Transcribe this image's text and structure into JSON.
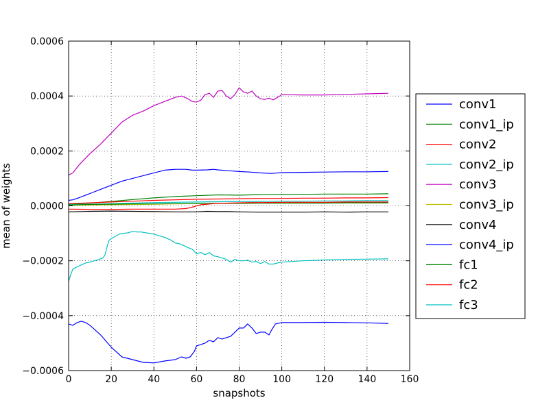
{
  "chart_data": {
    "type": "line",
    "title": "",
    "xlabel": "snapshots",
    "ylabel": "mean of weights",
    "xlim": [
      0,
      160
    ],
    "ylim": [
      -0.0006,
      0.0006
    ],
    "xticks": [
      0,
      20,
      40,
      60,
      80,
      100,
      120,
      140,
      160
    ],
    "xtick_labels": [
      "0",
      "20",
      "40",
      "60",
      "80",
      "100",
      "120",
      "140",
      "160"
    ],
    "yticks": [
      -0.0006,
      -0.0004,
      -0.0002,
      0.0,
      0.0002,
      0.0004,
      0.0006
    ],
    "ytick_labels": [
      "−0.0006",
      "−0.0004",
      "−0.0002",
      "0.0000",
      "0.0002",
      "0.0004",
      "0.0006"
    ],
    "grid": true,
    "legend_position": "outside-right",
    "series": [
      {
        "name": "conv1",
        "color": "#0000ff",
        "x": [
          0,
          2,
          5,
          10,
          15,
          20,
          25,
          30,
          35,
          40,
          45,
          50,
          55,
          58,
          60,
          65,
          68,
          70,
          75,
          80,
          85,
          90,
          95,
          100,
          110,
          120,
          130,
          140,
          150
        ],
        "y": [
          2e-05,
          2.2e-05,
          3e-05,
          4.5e-05,
          6e-05,
          7.5e-05,
          9e-05,
          0.0001,
          0.00011,
          0.00012,
          0.00013,
          0.000133,
          0.000133,
          0.00013,
          0.00013,
          0.000131,
          0.000133,
          0.000131,
          0.000128,
          0.000125,
          0.000123,
          0.00012,
          0.000118,
          0.000121,
          0.000122,
          0.000123,
          0.000124,
          0.000124,
          0.000125
        ]
      },
      {
        "name": "conv1_ip",
        "color": "#008000",
        "x": [
          0,
          10,
          20,
          30,
          40,
          50,
          60,
          70,
          80,
          90,
          100,
          110,
          120,
          130,
          140,
          150
        ],
        "y": [
          5e-06,
          1e-05,
          1.6e-05,
          2.3e-05,
          2.9e-05,
          3.4e-05,
          3.7e-05,
          4e-05,
          3.9e-05,
          4.1e-05,
          4.2e-05,
          4.2e-05,
          4.3e-05,
          4.3e-05,
          4.3e-05,
          4.4e-05
        ]
      },
      {
        "name": "conv2",
        "color": "#ff0000",
        "x": [
          0,
          10,
          20,
          30,
          40,
          50,
          60,
          70,
          80,
          90,
          100,
          110,
          120,
          130,
          140,
          150
        ],
        "y": [
          8e-06,
          1.1e-05,
          1.4e-05,
          1.7e-05,
          2e-05,
          2.2e-05,
          2.4e-05,
          2.5e-05,
          2.6e-05,
          2.7e-05,
          2.7e-05,
          2.8e-05,
          2.8e-05,
          2.9e-05,
          2.9e-05,
          3e-05
        ]
      },
      {
        "name": "conv2_ip",
        "color": "#00bfbf",
        "x": [
          0,
          10,
          20,
          30,
          40,
          50,
          60,
          70,
          80,
          90,
          100,
          110,
          120,
          130,
          140,
          150
        ],
        "y": [
          4e-06,
          6e-06,
          8e-06,
          1e-05,
          1.2e-05,
          1.3e-05,
          1.4e-05,
          1.5e-05,
          1.6e-05,
          1.6e-05,
          1.7e-05,
          1.7e-05,
          1.8e-05,
          1.8e-05,
          1.9e-05,
          1.9e-05
        ]
      },
      {
        "name": "conv3",
        "color": "#bf00bf",
        "x": [
          0,
          2,
          5,
          10,
          15,
          20,
          25,
          30,
          35,
          40,
          45,
          50,
          53,
          56,
          58,
          60,
          62,
          64,
          66,
          68,
          70,
          72,
          74,
          76,
          78,
          80,
          82,
          84,
          86,
          88,
          90,
          92,
          94,
          96,
          98,
          100,
          110,
          120,
          130,
          140,
          150
        ],
        "y": [
          0.000112,
          0.00012,
          0.00015,
          0.00019,
          0.000225,
          0.000265,
          0.000305,
          0.00033,
          0.000345,
          0.000365,
          0.00038,
          0.000395,
          0.0004,
          0.00039,
          0.00038,
          0.000378,
          0.000385,
          0.000405,
          0.00041,
          0.000395,
          0.000418,
          0.00042,
          0.0004,
          0.00039,
          0.000405,
          0.00043,
          0.000415,
          0.00041,
          0.000418,
          0.0004,
          0.00039,
          0.000388,
          0.000392,
          0.000386,
          0.000395,
          0.000405,
          0.000404,
          0.000404,
          0.000406,
          0.000408,
          0.00041
        ]
      },
      {
        "name": "conv3_ip",
        "color": "#bfbf00",
        "x": [
          0,
          10,
          20,
          30,
          40,
          50,
          60,
          70,
          80,
          90,
          100,
          110,
          120,
          130,
          140,
          150
        ],
        "y": [
          2e-06,
          3e-06,
          4e-06,
          5e-06,
          6e-06,
          7e-06,
          8e-06,
          9e-06,
          9e-06,
          1e-05,
          1e-05,
          1e-05,
          1.1e-05,
          1.1e-05,
          1.1e-05,
          1.2e-05
        ]
      },
      {
        "name": "conv4",
        "color": "#000000",
        "x": [
          0,
          10,
          20,
          30,
          40,
          50,
          60,
          65,
          70,
          75,
          80,
          90,
          100,
          110,
          120,
          130,
          140,
          150
        ],
        "y": [
          -2.2e-05,
          -2e-05,
          -1.9e-05,
          -2e-05,
          -2.1e-05,
          -2.2e-05,
          -2.2e-05,
          -2e-05,
          -2.1e-05,
          -2.1e-05,
          -2.2e-05,
          -2.3e-05,
          -2.3e-05,
          -2.3e-05,
          -2.2e-05,
          -2.3e-05,
          -2.2e-05,
          -2.2e-05
        ]
      },
      {
        "name": "conv4_ip",
        "color": "#0000ff",
        "x": [
          0,
          2,
          4,
          6,
          8,
          10,
          15,
          20,
          25,
          30,
          35,
          40,
          45,
          50,
          53,
          55,
          57,
          59,
          60,
          62,
          64,
          66,
          68,
          70,
          72,
          74,
          76,
          78,
          80,
          82,
          84,
          86,
          88,
          90,
          92,
          94,
          95,
          97,
          100,
          110,
          120,
          130,
          140,
          150
        ],
        "y": [
          -0.00043,
          -0.000435,
          -0.000425,
          -0.00042,
          -0.000425,
          -0.000435,
          -0.00047,
          -0.000515,
          -0.00055,
          -0.00056,
          -0.00057,
          -0.000572,
          -0.000565,
          -0.00056,
          -0.00055,
          -0.000555,
          -0.00055,
          -0.00053,
          -0.00051,
          -0.000505,
          -0.0005,
          -0.00049,
          -0.000495,
          -0.00048,
          -0.000485,
          -0.00048,
          -0.000475,
          -0.00046,
          -0.000445,
          -0.000445,
          -0.00043,
          -0.000445,
          -0.000465,
          -0.00046,
          -0.00046,
          -0.00047,
          -0.000455,
          -0.00043,
          -0.000425,
          -0.000425,
          -0.000424,
          -0.000425,
          -0.000426,
          -0.000428
        ]
      },
      {
        "name": "fc1",
        "color": "#008000",
        "x": [
          0,
          10,
          20,
          30,
          40,
          50,
          60,
          70,
          80,
          90,
          100,
          110,
          120,
          130,
          140,
          150
        ],
        "y": [
          3e-06,
          5e-06,
          6e-06,
          7e-06,
          7e-06,
          8e-06,
          8e-06,
          9e-06,
          9e-06,
          1e-05,
          1e-05,
          1e-05,
          1e-05,
          1.1e-05,
          1.1e-05,
          1.1e-05
        ]
      },
      {
        "name": "fc2",
        "color": "#ff0000",
        "x": [
          0,
          10,
          20,
          30,
          40,
          50,
          55,
          58,
          60,
          62,
          65,
          68,
          70,
          75,
          80,
          85,
          90,
          100,
          110,
          120,
          130,
          140,
          150
        ],
        "y": [
          -1.2e-05,
          -1.3e-05,
          -1.3e-05,
          -1.2e-05,
          -1.2e-05,
          -1.2e-05,
          -1e-05,
          -5e-06,
          0.0,
          4e-06,
          6e-06,
          8e-06,
          9e-06,
          1e-05,
          1.1e-05,
          1.2e-05,
          1.2e-05,
          1.3e-05,
          1.3e-05,
          1.3e-05,
          1.4e-05,
          1.4e-05,
          1.4e-05
        ]
      },
      {
        "name": "fc3",
        "color": "#00bfbf",
        "x": [
          0,
          1,
          2,
          4,
          6,
          8,
          10,
          12,
          14,
          16,
          17,
          18,
          19,
          20,
          22,
          24,
          26,
          28,
          30,
          32,
          34,
          36,
          38,
          40,
          42,
          44,
          46,
          48,
          50,
          52,
          54,
          56,
          58,
          60,
          62,
          64,
          66,
          68,
          70,
          72,
          74,
          76,
          78,
          80,
          82,
          84,
          86,
          88,
          90,
          92,
          94,
          96,
          98,
          100,
          110,
          120,
          130,
          140,
          150
        ],
        "y": [
          -0.000275,
          -0.00025,
          -0.00023,
          -0.000222,
          -0.000215,
          -0.000208,
          -0.000205,
          -0.0002,
          -0.000196,
          -0.00019,
          -0.00018,
          -0.00015,
          -0.000125,
          -0.00012,
          -0.00011,
          -0.000102,
          -0.0001,
          -9.8e-05,
          -9.3e-05,
          -9.5e-05,
          -9.5e-05,
          -9.8e-05,
          -0.0001,
          -0.000103,
          -0.000108,
          -0.000112,
          -0.000118,
          -0.000125,
          -0.000135,
          -0.000138,
          -0.000145,
          -0.000152,
          -0.000158,
          -0.000175,
          -0.00017,
          -0.000178,
          -0.00017,
          -0.000182,
          -0.000185,
          -0.00019,
          -0.000195,
          -0.000205,
          -0.000195,
          -0.0002,
          -0.0002,
          -0.000198,
          -0.000205,
          -0.000202,
          -0.00021,
          -0.000203,
          -0.000212,
          -0.000212,
          -0.000208,
          -0.000205,
          -0.0002,
          -0.000197,
          -0.000195,
          -0.000194,
          -0.000193
        ]
      }
    ]
  }
}
